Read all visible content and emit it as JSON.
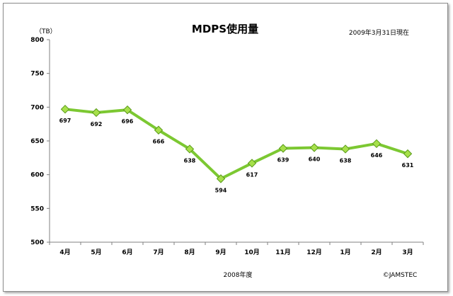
{
  "chart_data": {
    "type": "line",
    "title": "MDPS使用量",
    "unit_label": "（TB）",
    "date_note": "2009年3月31日現在",
    "xlabel": "2008年度",
    "copyright": "©JAMSTEC",
    "categories": [
      "4月",
      "5月",
      "6月",
      "7月",
      "8月",
      "9月",
      "10月",
      "11月",
      "12月",
      "1月",
      "2月",
      "3月"
    ],
    "values": [
      697,
      692,
      696,
      666,
      638,
      594,
      617,
      639,
      640,
      638,
      646,
      631
    ],
    "data_labels": [
      "697",
      "692",
      "696",
      "666",
      "638",
      "594",
      "617",
      "639",
      "640",
      "638",
      "646",
      "631"
    ],
    "ylim": [
      500,
      800
    ],
    "yticks": [
      800,
      750,
      700,
      650,
      600,
      550,
      500
    ],
    "ytick_labels": [
      "800",
      "750",
      "700",
      "650",
      "600",
      "550",
      "500"
    ],
    "grid": false,
    "line_color": "#7cc832",
    "marker_color": "#a6e04a",
    "marker_edge_color": "#5a9a1a",
    "axis_color": "#808080"
  }
}
